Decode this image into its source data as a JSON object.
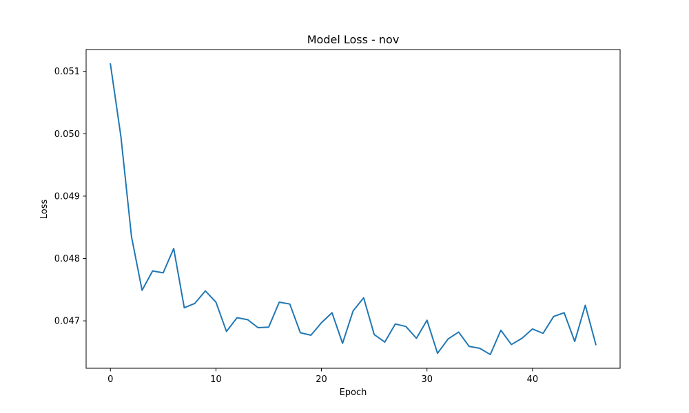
{
  "chart_data": {
    "type": "line",
    "title": "Model Loss - nov",
    "xlabel": "Epoch",
    "ylabel": "Loss",
    "xlim": [
      -2.3,
      48.3
    ],
    "ylim": [
      0.04624,
      0.05135
    ],
    "xticks": [
      0,
      10,
      20,
      30,
      40
    ],
    "yticks": [
      0.047,
      0.048,
      0.049,
      0.05,
      0.051
    ],
    "ytick_labels": [
      "0.047",
      "0.048",
      "0.049",
      "0.050",
      "0.051"
    ],
    "grid": false,
    "series": [
      {
        "color": "#1f77b4",
        "x": [
          0,
          1,
          2,
          3,
          4,
          5,
          6,
          7,
          8,
          9,
          10,
          11,
          12,
          13,
          14,
          15,
          16,
          17,
          18,
          19,
          20,
          21,
          22,
          23,
          24,
          25,
          26,
          27,
          28,
          29,
          30,
          31,
          32,
          33,
          34,
          35,
          36,
          37,
          38,
          39,
          40,
          41,
          42,
          43,
          44,
          45,
          46
        ],
        "values": [
          0.05112,
          0.04995,
          0.04835,
          0.04749,
          0.0478,
          0.04777,
          0.04816,
          0.04721,
          0.04728,
          0.04748,
          0.0473,
          0.04683,
          0.04705,
          0.04702,
          0.04689,
          0.0469,
          0.0473,
          0.04727,
          0.04681,
          0.04677,
          0.04697,
          0.04713,
          0.04664,
          0.04716,
          0.04737,
          0.04678,
          0.04666,
          0.04695,
          0.04691,
          0.04672,
          0.04701,
          0.04648,
          0.04671,
          0.04682,
          0.04659,
          0.04656,
          0.04646,
          0.04685,
          0.04662,
          0.04672,
          0.04687,
          0.0468,
          0.04707,
          0.04713,
          0.04667,
          0.04725,
          0.04662
        ]
      }
    ]
  }
}
